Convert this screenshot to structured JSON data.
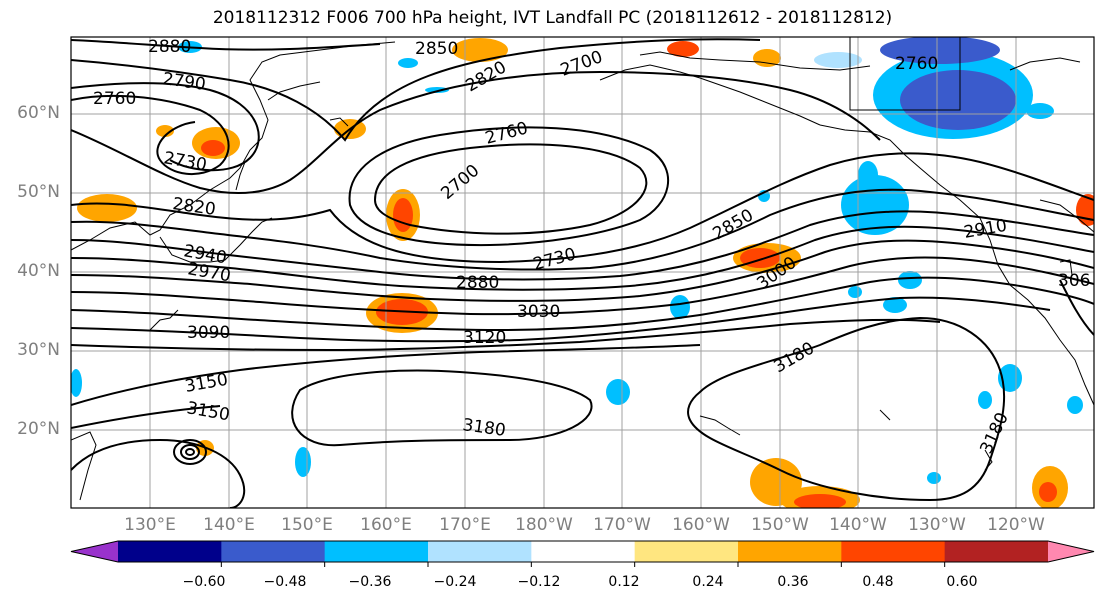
{
  "title": "2018112312 F006 700 hPa height, IVT Landfall PC (2018112612 - 2018112812)",
  "lat_labels": [
    "60°N",
    "50°N",
    "40°N",
    "30°N",
    "20°N"
  ],
  "lon_labels": [
    "130°E",
    "140°E",
    "150°E",
    "160°E",
    "170°E",
    "180°W",
    "170°W",
    "160°W",
    "150°W",
    "140°W",
    "130°W",
    "120°W"
  ],
  "contour_labels": [
    "2880",
    "2850",
    "2820",
    "2790",
    "2760",
    "2730",
    "2700",
    "2760",
    "2820",
    "2850",
    "2940",
    "2970",
    "2730",
    "2880",
    "3030",
    "3000",
    "3090",
    "3120",
    "2910",
    "306",
    "3180",
    "3150",
    "3150",
    "3180",
    "3180",
    "2760",
    "2700"
  ],
  "colorbar": {
    "ticks": [
      "−0.60",
      "−0.48",
      "−0.36",
      "−0.24",
      "−0.12",
      "0.12",
      "0.24",
      "0.36",
      "0.48",
      "0.60"
    ],
    "colors": [
      "#9932cc",
      "#00008b",
      "#3a5bcc",
      "#00bfff",
      "#b0e2ff",
      "#ffffff",
      "#ffe680",
      "#ffa500",
      "#ff4500",
      "#b22222",
      "#ff88b0"
    ]
  }
}
